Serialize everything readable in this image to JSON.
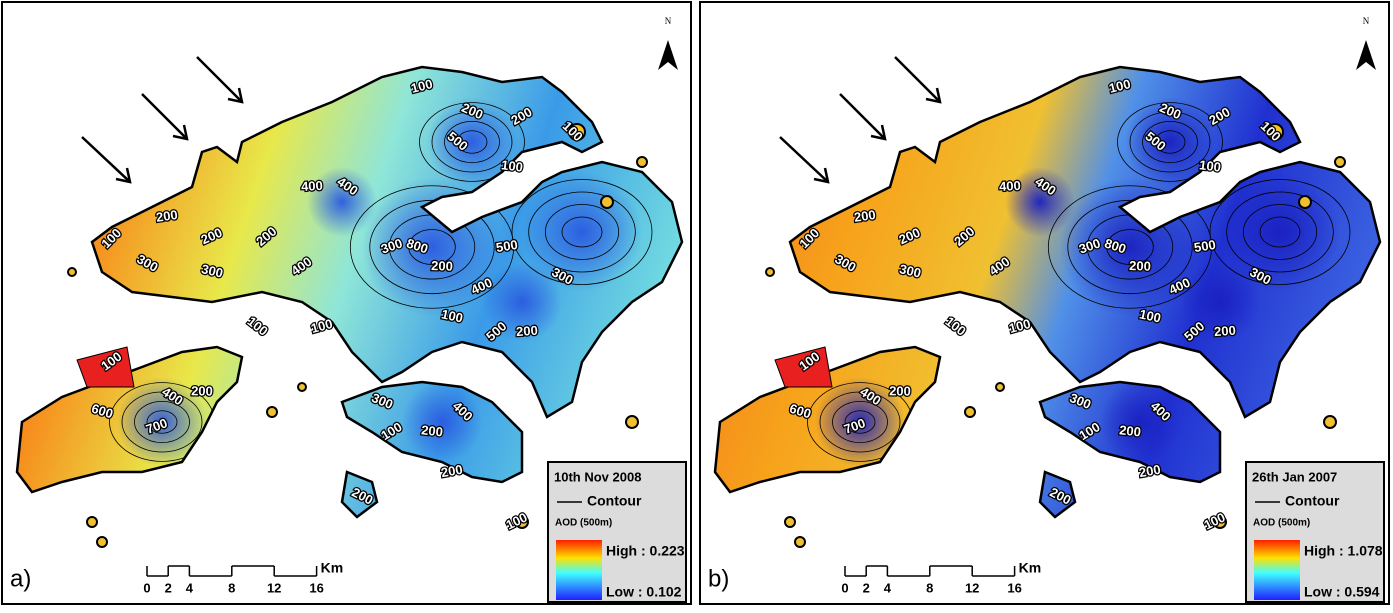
{
  "panels": [
    {
      "label": "a)",
      "north": "N",
      "legend": {
        "title": "10th Nov 2008",
        "contour": "Contour",
        "aod": "AOD (500m)",
        "high": "High : 0.223",
        "low": "Low : 0.102"
      },
      "scale": {
        "ticks": [
          0,
          2,
          4,
          8,
          12,
          16
        ],
        "unit": "Km"
      },
      "contour_labels": [
        100,
        200,
        300,
        200,
        300,
        200,
        400,
        400,
        300,
        800,
        400,
        200,
        500,
        100,
        200,
        200,
        100,
        100,
        500,
        300,
        400,
        100,
        500,
        200,
        400,
        700,
        600,
        100,
        200,
        100,
        100,
        300,
        100,
        200,
        400,
        200,
        200,
        100
      ]
    },
    {
      "label": "b)",
      "north": "N",
      "legend": {
        "title": "26th Jan 2007",
        "contour": "Contour",
        "aod": "AOD (500m)",
        "high": "High : 1.078",
        "low": "Low : 0.594"
      },
      "scale": {
        "ticks": [
          0,
          2,
          4,
          8,
          12,
          16
        ],
        "unit": "Km"
      },
      "contour_labels": [
        100,
        200,
        300,
        200,
        300,
        200,
        400,
        400,
        300,
        800,
        400,
        200,
        500,
        100,
        200,
        200,
        100,
        100,
        500,
        300,
        400,
        100,
        500,
        200,
        400,
        700,
        600,
        100,
        200,
        100,
        100,
        300,
        100,
        200,
        400,
        200,
        200,
        100
      ]
    }
  ]
}
